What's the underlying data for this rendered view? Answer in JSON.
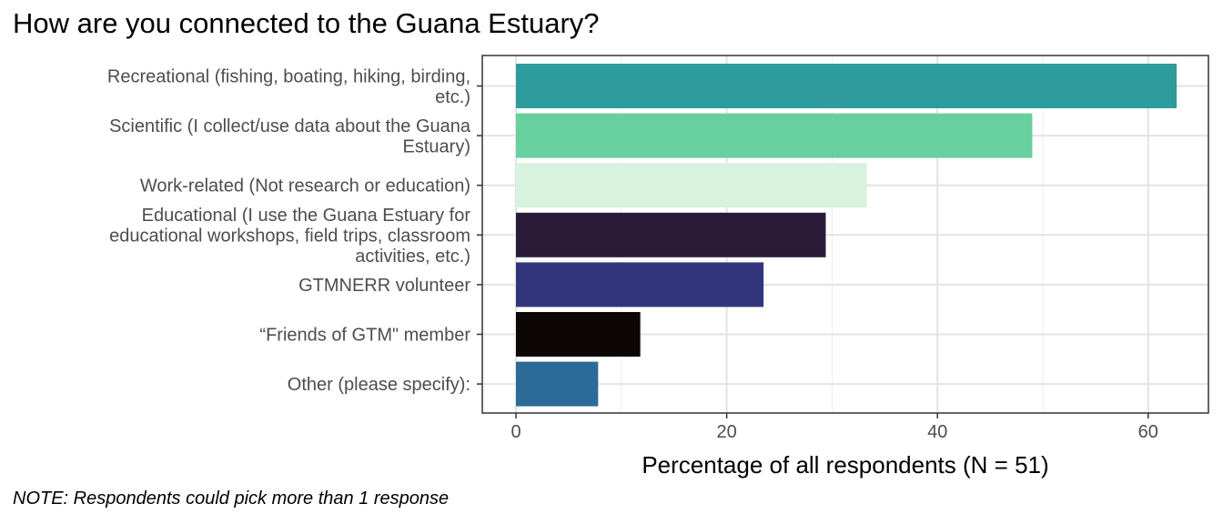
{
  "chart_data": {
    "type": "bar",
    "orientation": "horizontal",
    "title": "How are you connected to the Guana Estuary?",
    "xlabel": "Percentage of all respondents (N = 51)",
    "ylabel": "",
    "note": "NOTE: Respondents could pick more than 1 response",
    "xlim": [
      0,
      65
    ],
    "xticks": [
      0,
      20,
      40,
      60
    ],
    "grid": true,
    "legend": "none",
    "categories": [
      [
        "Recreational (fishing, boating, hiking, birding,",
        "etc.)"
      ],
      [
        "Scientific (I collect/use data about the Guana",
        "Estuary)"
      ],
      [
        "Work-related (Not research or education)"
      ],
      [
        "Educational (I use the Guana Estuary for",
        "educational workshops, field trips, classroom",
        "activities, etc.)"
      ],
      [
        "GTMNERR volunteer"
      ],
      [
        "“Friends of GTM\" member"
      ],
      [
        "Other (please specify):"
      ]
    ],
    "values": [
      62.7,
      49.0,
      33.3,
      29.4,
      23.5,
      11.8,
      7.8
    ],
    "colors": [
      "#2e9c9d",
      "#68d09e",
      "#d7f2df",
      "#2a1c39",
      "#33357c",
      "#0d0606",
      "#2c6b97"
    ]
  }
}
